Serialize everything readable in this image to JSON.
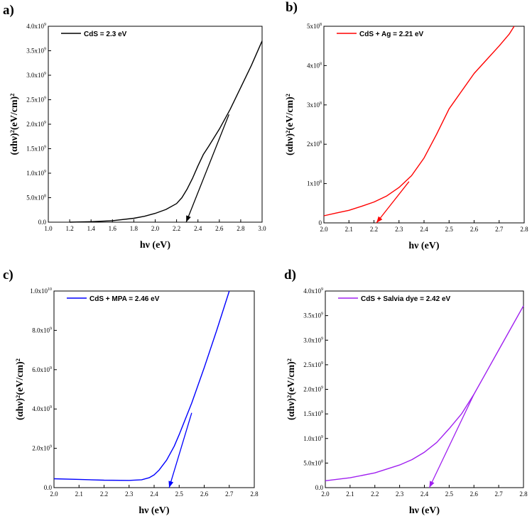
{
  "chart_data": [
    {
      "panel": "a)",
      "type": "line",
      "xlabel": "hν (eV)",
      "ylabel": "(αhν)²(eV/cm)²",
      "xlim": [
        1.0,
        3.0
      ],
      "ylim": [
        0,
        4000000000.0
      ],
      "xticks": [
        1.0,
        1.2,
        1.4,
        1.6,
        1.8,
        2.0,
        2.2,
        2.4,
        2.6,
        2.8,
        3.0
      ],
      "yticks": [
        0,
        500000000.0,
        1000000000.0,
        1500000000.0,
        2000000000.0,
        2500000000.0,
        3000000000.0,
        3500000000.0,
        4000000000.0
      ],
      "ytick_labels": [
        "0.0",
        "5.0x10⁸",
        "1.0x10⁹",
        "1.5x10⁹",
        "2.0x10⁹",
        "2.5x10⁹",
        "3.0x10⁹",
        "3.5x10⁹",
        "4.0x10⁹"
      ],
      "series": [
        {
          "name": "CdS = 2.3 eV",
          "color": "#000000",
          "x": [
            1.2,
            1.4,
            1.6,
            1.8,
            1.9,
            2.0,
            2.1,
            2.2,
            2.25,
            2.3,
            2.35,
            2.4,
            2.45,
            2.5,
            2.6,
            2.7,
            2.8,
            2.9,
            3.0
          ],
          "y": [
            0,
            10000000.0,
            30000000.0,
            80000000.0,
            120000000.0,
            180000000.0,
            260000000.0,
            380000000.0,
            500000000.0,
            680000000.0,
            900000000.0,
            1150000000.0,
            1380000000.0,
            1550000000.0,
            1900000000.0,
            2300000000.0,
            2750000000.0,
            3200000000.0,
            3700000000.0
          ]
        }
      ],
      "arrow": {
        "x": [
          2.69,
          2.29
        ],
        "y": [
          2200000000.0,
          0
        ]
      }
    },
    {
      "panel": "b)",
      "type": "line",
      "xlabel": "hν (eV)",
      "ylabel": "(αhν)²(eV/cm)²",
      "xlim": [
        2.0,
        2.8
      ],
      "ylim": [
        0,
        500000000.0
      ],
      "xticks": [
        2.0,
        2.1,
        2.2,
        2.3,
        2.4,
        2.5,
        2.6,
        2.7,
        2.8
      ],
      "yticks": [
        0,
        100000000.0,
        200000000.0,
        300000000.0,
        400000000.0,
        500000000.0
      ],
      "ytick_labels": [
        "0",
        "1x10⁸",
        "2x10⁸",
        "3x10⁸",
        "4x10⁸",
        "5x10⁸"
      ],
      "series": [
        {
          "name": "CdS + Ag = 2.21 eV",
          "color": "#ff0000",
          "x": [
            2.0,
            2.05,
            2.1,
            2.15,
            2.2,
            2.25,
            2.3,
            2.35,
            2.4,
            2.45,
            2.5,
            2.55,
            2.6,
            2.65,
            2.7,
            2.74,
            2.76
          ],
          "y": [
            18000000.0,
            25000000.0,
            32000000.0,
            42000000.0,
            53000000.0,
            68000000.0,
            90000000.0,
            120000000.0,
            165000000.0,
            225000000.0,
            290000000.0,
            335000000.0,
            380000000.0,
            415000000.0,
            450000000.0,
            480000000.0,
            500000000.0
          ]
        }
      ],
      "arrow": {
        "x": [
          2.34,
          2.21
        ],
        "y": [
          105000000.0,
          0
        ]
      }
    },
    {
      "panel": "c)",
      "type": "line",
      "xlabel": "hν (eV)",
      "ylabel": "(αhν)²(eV/cm)²",
      "xlim": [
        2.0,
        2.8
      ],
      "ylim": [
        0,
        10000000000.0
      ],
      "xticks": [
        2.0,
        2.1,
        2.2,
        2.3,
        2.4,
        2.5,
        2.6,
        2.7,
        2.8
      ],
      "yticks": [
        0,
        2000000000.0,
        4000000000.0,
        6000000000.0,
        8000000000.0,
        10000000000.0
      ],
      "ytick_labels": [
        "0.0",
        "2.0x10⁹",
        "4.0x10⁹",
        "6.0x10⁹",
        "8.0x10⁹",
        "1.0x10¹⁰"
      ],
      "series": [
        {
          "name": "CdS + MPA = 2.46 eV",
          "color": "#0000ff",
          "x": [
            2.0,
            2.1,
            2.2,
            2.3,
            2.35,
            2.38,
            2.4,
            2.42,
            2.45,
            2.48,
            2.5,
            2.55,
            2.6,
            2.65,
            2.7
          ],
          "y": [
            450000000.0,
            420000000.0,
            380000000.0,
            370000000.0,
            400000000.0,
            500000000.0,
            650000000.0,
            900000000.0,
            1400000000.0,
            2100000000.0,
            2700000000.0,
            4300000000.0,
            6100000000.0,
            8000000000.0,
            10000000000.0
          ]
        }
      ],
      "arrow": {
        "x": [
          2.55,
          2.46
        ],
        "y": [
          3800000000.0,
          0
        ]
      }
    },
    {
      "panel": "d)",
      "type": "line",
      "xlabel": "hν (eV)",
      "ylabel": "(αhν)²(eV/cm)²",
      "xlim": [
        2.0,
        2.8
      ],
      "ylim": [
        0,
        4000000000.0
      ],
      "xticks": [
        2.0,
        2.1,
        2.2,
        2.3,
        2.4,
        2.5,
        2.6,
        2.7,
        2.8
      ],
      "yticks": [
        0,
        500000000.0,
        1000000000.0,
        1500000000.0,
        2000000000.0,
        2500000000.0,
        3000000000.0,
        3500000000.0,
        4000000000.0
      ],
      "ytick_labels": [
        "0.0",
        "5.0x10⁸",
        "1.0x10⁹",
        "1.5x10⁹",
        "2.0x10⁹",
        "2.5x10⁹",
        "3.0x10⁹",
        "3.5x10⁹",
        "4.0x10⁹"
      ],
      "series": [
        {
          "name": "CdS + Salvia dye = 2.42 eV",
          "color": "#a020f0",
          "x": [
            2.0,
            2.1,
            2.2,
            2.3,
            2.35,
            2.4,
            2.45,
            2.5,
            2.55,
            2.6,
            2.65,
            2.7,
            2.75,
            2.8
          ],
          "y": [
            140000000.0,
            200000000.0,
            300000000.0,
            460000000.0,
            570000000.0,
            720000000.0,
            920000000.0,
            1200000000.0,
            1500000000.0,
            1900000000.0,
            2350000000.0,
            2800000000.0,
            3250000000.0,
            3700000000.0
          ]
        }
      ],
      "arrow": {
        "x": [
          2.6,
          2.42
        ],
        "y": [
          1900000000.0,
          0
        ]
      }
    }
  ]
}
